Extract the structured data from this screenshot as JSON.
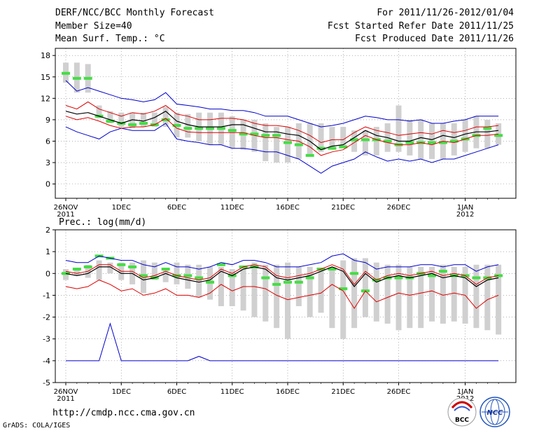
{
  "header": {
    "title": "DERF/NCC/BCC Monthly Forecast",
    "member_size": "Member Size=40",
    "variable_top": "Mean Surf. Temp.: °C",
    "period": "For 2011/11/26-2012/01/04",
    "started": "Fcst Started Refer Date 2011/11/25",
    "produced": "Fcst Produced Date 2011/11/26"
  },
  "footer": {
    "url": "http://cmdp.ncc.cma.gov.cn",
    "credit": "GrADS: COLA/IGES",
    "logo_bcc": "BCC",
    "logo_ncc": "NCC"
  },
  "colors": {
    "box": "#d0d0d0",
    "median": "#44dd44",
    "mean": "#000000",
    "band": "#dd0000",
    "envelope": "#0000cc",
    "grid": "#808080"
  },
  "chart_data": [
    {
      "type": "box",
      "title": "Mean Surf. Temp.: °C",
      "ylim": [
        -2,
        19
      ],
      "yticks": [
        0,
        3,
        6,
        9,
        12,
        15,
        18
      ],
      "days": 40,
      "x_ticks": [
        {
          "day": 0,
          "label": "26NOV",
          "sub": "2011"
        },
        {
          "day": 5,
          "label": "1DEC",
          "sub": ""
        },
        {
          "day": 10,
          "label": "6DEC",
          "sub": ""
        },
        {
          "day": 15,
          "label": "11DEC",
          "sub": ""
        },
        {
          "day": 20,
          "label": "16DEC",
          "sub": ""
        },
        {
          "day": 25,
          "label": "21DEC",
          "sub": ""
        },
        {
          "day": 30,
          "label": "26DEC",
          "sub": ""
        },
        {
          "day": 36,
          "label": "1JAN",
          "sub": "2012"
        }
      ],
      "box_low": [
        14.2,
        12.8,
        12.8,
        9.2,
        8.5,
        8.0,
        7.8,
        8.0,
        8.0,
        8.0,
        6.5,
        6.5,
        6.0,
        5.5,
        5.5,
        5.0,
        4.8,
        4.5,
        3.2,
        3.0,
        3.0,
        3.5,
        4.0,
        4.5,
        5.0,
        5.0,
        4.5,
        4.0,
        4.0,
        4.5,
        4.5,
        4.0,
        3.5,
        3.5,
        3.5,
        4.0,
        4.5,
        5.0,
        5.0,
        5.5
      ],
      "box_high": [
        17.0,
        17.0,
        16.8,
        11.0,
        10.2,
        10.0,
        10.0,
        10.0,
        10.0,
        10.8,
        10.0,
        9.8,
        10.0,
        10.0,
        10.0,
        9.5,
        9.0,
        9.0,
        8.5,
        8.0,
        8.0,
        8.5,
        8.5,
        8.5,
        8.0,
        8.0,
        7.5,
        7.5,
        8.0,
        8.5,
        11.0,
        9.0,
        9.0,
        8.5,
        8.5,
        8.5,
        9.0,
        9.5,
        9.0,
        8.5
      ],
      "median": [
        15.5,
        14.8,
        14.8,
        9.5,
        8.8,
        8.5,
        8.3,
        8.5,
        8.3,
        9.0,
        8.2,
        7.8,
        7.8,
        7.8,
        7.8,
        7.5,
        7.0,
        7.0,
        6.8,
        6.8,
        5.8,
        5.5,
        4.0,
        5.0,
        5.0,
        5.2,
        6.2,
        6.2,
        6.2,
        6.0,
        5.5,
        5.8,
        5.8,
        5.8,
        5.8,
        6.0,
        6.3,
        6.8,
        7.8,
        6.8
      ],
      "mean": [
        10.2,
        9.8,
        10.0,
        9.5,
        9.0,
        8.5,
        9.0,
        8.8,
        9.3,
        10.2,
        8.8,
        8.3,
        8.0,
        8.0,
        8.0,
        8.3,
        8.3,
        7.8,
        7.3,
        7.3,
        7.0,
        6.8,
        6.0,
        4.8,
        5.3,
        5.5,
        6.5,
        7.5,
        6.8,
        6.5,
        6.0,
        6.0,
        6.5,
        6.2,
        6.8,
        6.5,
        7.0,
        7.3,
        7.3,
        7.5
      ],
      "band_upper": [
        11.0,
        10.5,
        11.5,
        10.5,
        10.0,
        9.5,
        10.0,
        9.8,
        10.2,
        11.0,
        9.8,
        9.5,
        9.0,
        9.0,
        9.2,
        9.2,
        9.0,
        8.5,
        8.2,
        8.2,
        8.0,
        7.5,
        6.8,
        5.8,
        6.2,
        6.2,
        7.2,
        8.0,
        7.5,
        7.2,
        6.8,
        7.0,
        7.2,
        7.0,
        7.5,
        7.2,
        7.5,
        8.0,
        8.0,
        8.2
      ],
      "band_lower": [
        9.5,
        9.0,
        9.3,
        8.8,
        8.2,
        7.8,
        8.0,
        8.0,
        8.3,
        9.2,
        7.8,
        7.3,
        7.2,
        7.2,
        7.2,
        7.2,
        7.2,
        6.8,
        6.5,
        6.5,
        6.2,
        6.0,
        5.2,
        4.0,
        4.5,
        4.8,
        5.8,
        6.8,
        6.2,
        5.8,
        5.5,
        5.5,
        5.8,
        5.5,
        6.0,
        5.8,
        6.3,
        6.8,
        6.8,
        7.0
      ],
      "env_upper": [
        14.5,
        13.0,
        13.5,
        13.0,
        12.5,
        12.0,
        11.8,
        11.5,
        11.8,
        12.8,
        11.2,
        11.0,
        10.8,
        10.5,
        10.5,
        10.3,
        10.3,
        10.0,
        9.5,
        9.5,
        9.5,
        9.0,
        8.5,
        8.0,
        8.2,
        8.5,
        9.0,
        9.5,
        9.3,
        9.0,
        9.0,
        8.8,
        9.0,
        8.5,
        8.5,
        8.8,
        9.0,
        9.5,
        9.5,
        9.5
      ],
      "env_lower": [
        8.0,
        7.3,
        6.8,
        6.3,
        7.3,
        7.8,
        7.5,
        7.5,
        7.5,
        8.5,
        6.3,
        6.0,
        5.8,
        5.5,
        5.5,
        5.0,
        5.0,
        4.8,
        4.5,
        4.5,
        4.0,
        3.5,
        2.5,
        1.5,
        2.5,
        3.0,
        3.5,
        4.5,
        3.8,
        3.2,
        3.5,
        3.2,
        3.5,
        3.0,
        3.5,
        3.5,
        4.0,
        4.5,
        5.0,
        5.5
      ]
    },
    {
      "type": "box",
      "title": "Prec.: log(mm/d)",
      "ylim": [
        -5,
        2
      ],
      "yticks": [
        -5,
        -4,
        -3,
        -2,
        -1,
        0,
        1,
        2
      ],
      "days": 40,
      "x_ticks": [
        {
          "day": 0,
          "label": "26NOV",
          "sub": "2011"
        },
        {
          "day": 5,
          "label": "1DEC",
          "sub": ""
        },
        {
          "day": 10,
          "label": "6DEC",
          "sub": ""
        },
        {
          "day": 15,
          "label": "11DEC",
          "sub": ""
        },
        {
          "day": 20,
          "label": "16DEC",
          "sub": ""
        },
        {
          "day": 25,
          "label": "21DEC",
          "sub": ""
        },
        {
          "day": 30,
          "label": "26DEC",
          "sub": ""
        },
        {
          "day": 36,
          "label": "1JAN",
          "sub": "2012"
        }
      ],
      "box_low": [
        -0.3,
        -0.1,
        -0.2,
        -0.3,
        0.0,
        -0.3,
        -0.5,
        -0.9,
        -0.3,
        -0.4,
        -0.5,
        -0.7,
        -1.1,
        -1.2,
        -1.5,
        -1.5,
        -1.7,
        -2.0,
        -2.2,
        -2.5,
        -3.0,
        -1.5,
        -2.0,
        -1.8,
        -2.5,
        -3.0,
        -2.5,
        -2.0,
        -2.2,
        -2.3,
        -2.6,
        -2.5,
        -2.5,
        -2.2,
        -2.3,
        -2.2,
        -2.3,
        -2.5,
        -2.6,
        -2.8
      ],
      "box_high": [
        0.2,
        0.2,
        0.4,
        0.6,
        0.5,
        0.5,
        0.5,
        0.6,
        0.5,
        0.2,
        0.5,
        0.4,
        0.4,
        0.3,
        0.3,
        0.2,
        0.2,
        0.5,
        0.4,
        0.4,
        0.5,
        0.3,
        0.3,
        0.2,
        0.3,
        0.6,
        0.7,
        0.7,
        0.5,
        0.4,
        0.4,
        0.3,
        0.3,
        0.3,
        0.4,
        0.3,
        0.3,
        0.4,
        0.4,
        0.4
      ],
      "median": [
        0.0,
        0.2,
        0.3,
        0.8,
        0.7,
        0.4,
        0.3,
        -0.1,
        -0.2,
        0.2,
        -0.1,
        -0.1,
        -0.2,
        -0.4,
        0.4,
        -0.1,
        0.3,
        0.3,
        -0.2,
        -0.5,
        -0.4,
        -0.4,
        -0.2,
        0.2,
        0.2,
        -0.7,
        0.0,
        -0.8,
        -0.3,
        -0.2,
        -0.2,
        -0.2,
        0.0,
        -0.1,
        0.1,
        -0.1,
        -0.1,
        -0.2,
        -0.2,
        -0.1
      ],
      "mean": [
        0.0,
        -0.1,
        0.0,
        0.3,
        0.3,
        0.0,
        0.0,
        -0.3,
        -0.2,
        0.0,
        -0.2,
        -0.3,
        -0.4,
        -0.3,
        0.1,
        -0.1,
        0.2,
        0.3,
        0.2,
        -0.2,
        -0.3,
        -0.2,
        -0.1,
        0.1,
        0.3,
        0.1,
        -0.6,
        0.0,
        -0.4,
        -0.2,
        -0.1,
        -0.2,
        -0.1,
        0.0,
        -0.2,
        -0.1,
        -0.2,
        -0.6,
        -0.3,
        -0.2
      ],
      "band_upper": [
        0.1,
        0.0,
        0.1,
        0.4,
        0.4,
        0.1,
        0.1,
        -0.2,
        -0.1,
        0.1,
        -0.1,
        -0.2,
        -0.3,
        -0.2,
        0.2,
        0.0,
        0.3,
        0.4,
        0.3,
        -0.1,
        -0.2,
        -0.1,
        0.0,
        0.2,
        0.4,
        0.2,
        -0.5,
        0.1,
        -0.3,
        -0.1,
        0.0,
        -0.1,
        0.0,
        0.1,
        -0.1,
        0.0,
        -0.1,
        -0.5,
        -0.2,
        -0.1
      ],
      "band_lower": [
        -0.6,
        -0.7,
        -0.6,
        -0.3,
        -0.5,
        -0.8,
        -0.7,
        -1.0,
        -0.9,
        -0.7,
        -1.0,
        -1.0,
        -1.1,
        -0.9,
        -0.5,
        -0.8,
        -0.6,
        -0.6,
        -0.7,
        -1.0,
        -1.2,
        -1.1,
        -1.0,
        -0.9,
        -0.5,
        -0.8,
        -1.6,
        -0.8,
        -1.3,
        -1.1,
        -0.9,
        -1.0,
        -0.9,
        -0.8,
        -1.0,
        -0.9,
        -1.0,
        -1.6,
        -1.2,
        -1.0
      ],
      "env_upper": [
        0.6,
        0.5,
        0.5,
        0.8,
        0.7,
        0.6,
        0.6,
        0.4,
        0.3,
        0.5,
        0.3,
        0.3,
        0.2,
        0.3,
        0.5,
        0.4,
        0.6,
        0.6,
        0.5,
        0.3,
        0.3,
        0.3,
        0.4,
        0.5,
        0.8,
        0.9,
        0.6,
        0.5,
        0.2,
        0.3,
        0.3,
        0.3,
        0.4,
        0.4,
        0.3,
        0.4,
        0.4,
        0.1,
        0.3,
        0.4
      ],
      "env_lower": [
        -4.0,
        -4.0,
        -4.0,
        -4.0,
        -2.3,
        -4.0,
        -4.0,
        -4.0,
        -4.0,
        -4.0,
        -4.0,
        -4.0,
        -3.8,
        -4.0,
        -4.0,
        -4.0,
        -4.0,
        -4.0,
        -4.0,
        -4.0,
        -4.0,
        -4.0,
        -4.0,
        -4.0,
        -4.0,
        -4.0,
        -4.0,
        -4.0,
        -4.0,
        -4.0,
        -4.0,
        -4.0,
        -4.0,
        -4.0,
        -4.0,
        -4.0,
        -4.0,
        -4.0,
        -4.0,
        -4.0
      ]
    }
  ]
}
